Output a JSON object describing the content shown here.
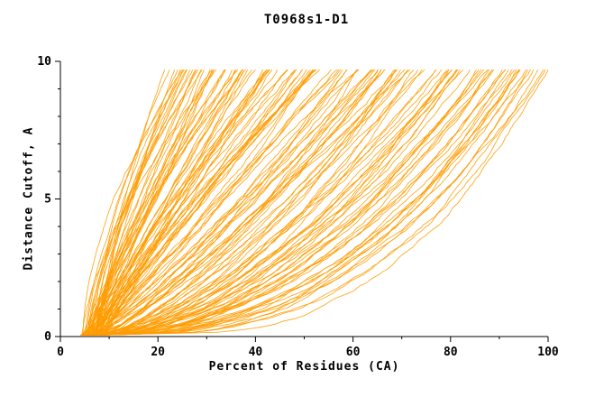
{
  "chart_data": {
    "type": "line",
    "title": "T0968s1-D1",
    "xlabel": "Percent of Residues (CA)",
    "ylabel": "Distance Cutoff, A",
    "xlim": [
      0,
      100
    ],
    "ylim": [
      0,
      10
    ],
    "x_ticks": [
      0,
      20,
      40,
      60,
      80,
      100
    ],
    "y_ticks": [
      0,
      5,
      10
    ],
    "x_minor_step": 10,
    "y_minor_step": 1,
    "grid": false,
    "legend": "none",
    "line_color": "#ff9c00",
    "axis_color": "#000000",
    "description": "Ensemble of per-model GDT curves for target T0968s1-D1: cumulative percent of CA residues (x) within each distance cutoff (y). All curves rise monotonically from about (5,0); endpoints at y=9.7 spread from x=22 (worst models) to x=100 (best models), forming a dense orange band.",
    "ensemble": {
      "n_curves": 140,
      "seed": 20968,
      "y_start": 0.05,
      "y_end": 9.7,
      "y_step": 0.1,
      "x_start_min": 4,
      "x_start_max": 9,
      "x_end_min": 22,
      "x_end_max": 100,
      "end_skew": 1.1,
      "shape_base": 0.32,
      "shape_span": 1.15,
      "noise": 0.85
    }
  }
}
